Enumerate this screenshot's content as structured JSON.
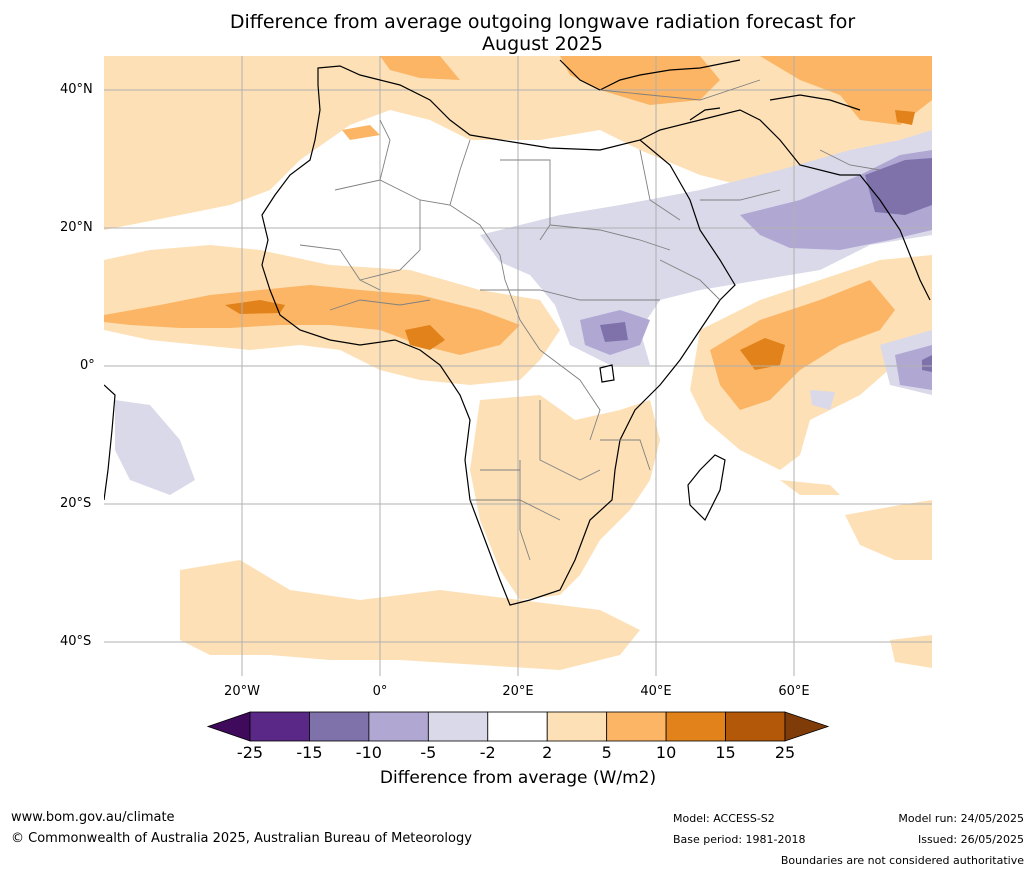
{
  "title": {
    "line1": "Difference from average outgoing longwave radiation forecast for",
    "line2": "August 2025"
  },
  "lat_labels": [
    "40°N",
    "20°N",
    "0°",
    "20°S",
    "40°S"
  ],
  "lon_labels": [
    "20°W",
    "0°",
    "20°E",
    "40°E",
    "60°E"
  ],
  "colorbar": {
    "label": "Difference from average (W/m2)",
    "ticks": [
      "-25",
      "-15",
      "-10",
      "-5",
      "-2",
      "2",
      "5",
      "10",
      "15",
      "25"
    ],
    "colors": [
      "#3f0a5b",
      "#5a2887",
      "#7f72ab",
      "#b0a8d3",
      "#d9d9ea",
      "#ffffff",
      "#fde0b6",
      "#fbb565",
      "#e1821a",
      "#b35709",
      "#7f3b08"
    ]
  },
  "footer": {
    "url": "www.bom.gov.au/climate",
    "copyright": "© Commonwealth of Australia 2025, Australian Bureau of Meteorology",
    "model": "Model: ACCESS-S2",
    "base_period": "Base period: 1981-2018",
    "model_run": "Model run: 24/05/2025",
    "issued": "Issued: 26/05/2025",
    "disclaimer": "Boundaries are not considered authoritative"
  }
}
